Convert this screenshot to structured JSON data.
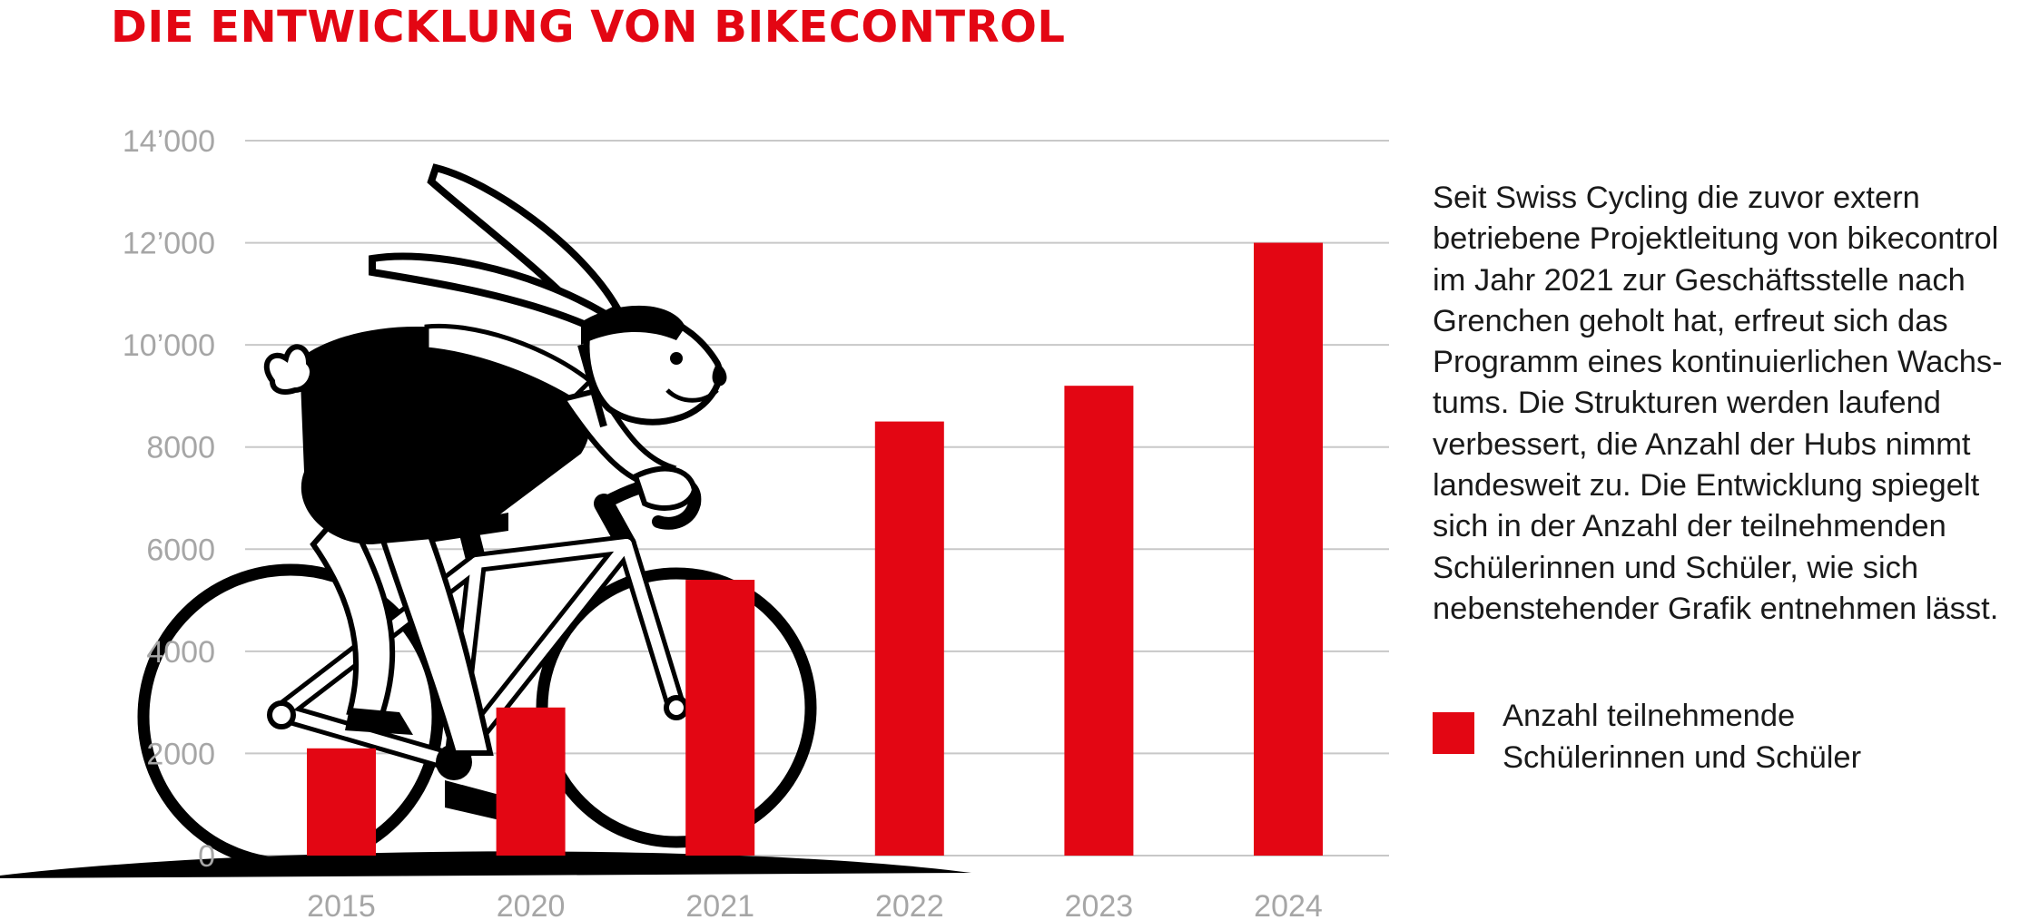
{
  "title": "DIE ENTWICKLUNG VON BIKECONTROL",
  "colors": {
    "accent": "#e30613",
    "bar": "#e30613",
    "grid": "#c8c8c8",
    "tick_label": "#a6a6a6",
    "text": "#1a1a1a"
  },
  "description_lines": [
    "Seit Swiss Cycling die zuvor extern",
    "betriebene Projektleitung von bikecontrol",
    "im Jahr 2021 zur Geschäftsstelle nach",
    "Grenchen geholt hat, erfreut sich das",
    "Programm eines kontinuierlichen Wachs-",
    "tums. Die Strukturen werden laufend",
    "verbessert, die Anzahl der Hubs nimmt",
    "landesweit zu. Die Entwicklung spiegelt",
    "sich in der Anzahl der teilnehmenden",
    "Schülerinnen und Schüler, wie sich",
    "nebenstehender Grafik entnehmen lässt."
  ],
  "legend": {
    "lines": [
      "Anzahl teilnehmende",
      "Schülerinnen und Schüler"
    ],
    "color": "#e30613"
  },
  "illustration": {
    "name": "rabbit-cyclist-illustration"
  },
  "chart_data": {
    "type": "bar",
    "categories": [
      "2015",
      "2020",
      "2021",
      "2022",
      "2023",
      "2024"
    ],
    "values": [
      2100,
      2900,
      5400,
      8500,
      9200,
      12000
    ],
    "series": [
      {
        "name": "Anzahl teilnehmende Schülerinnen und Schüler",
        "values": [
          2100,
          2900,
          5400,
          8500,
          9200,
          12000
        ]
      }
    ],
    "ylim": [
      0,
      14000
    ],
    "yticks": [
      0,
      2000,
      4000,
      6000,
      8000,
      10000,
      12000,
      14000
    ],
    "ytick_labels": [
      "0",
      "2000",
      "4000",
      "6000",
      "8000",
      "10’000",
      "12’000",
      "14’000"
    ],
    "grid": true,
    "legend_position": "right"
  }
}
